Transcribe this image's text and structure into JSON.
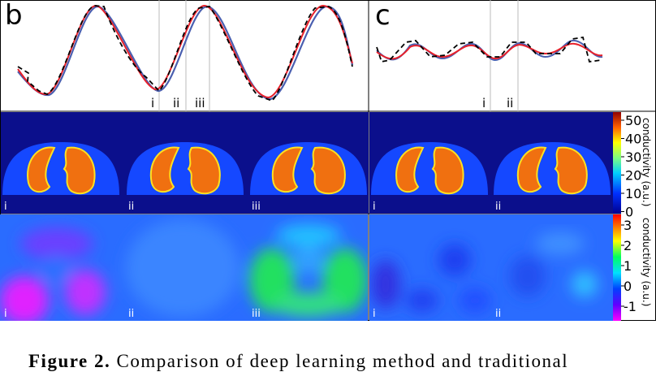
{
  "panels": {
    "b": {
      "letter": "b",
      "markers": [
        "i",
        "ii",
        "iii"
      ],
      "image_labels": [
        "i",
        "ii",
        "iii"
      ]
    },
    "c": {
      "letter": "c",
      "markers": [
        "i",
        "ii"
      ],
      "image_labels": [
        "i",
        "ii"
      ]
    }
  },
  "colorbar_top": {
    "label": "conductivity (a.u.)",
    "ticks": [
      "50",
      "40",
      "30",
      "20",
      "10",
      "0"
    ]
  },
  "colorbar_bottom": {
    "label": "conductivity (a.u.)",
    "ticks": [
      "3",
      "2",
      "1",
      "0",
      "-1"
    ]
  },
  "caption": {
    "prefix": "Figure 2.",
    "text": "Comparison of deep learning method and traditional"
  },
  "colors": {
    "red_curve": "#e8202a",
    "blue_curve": "#4a5fb0",
    "dashed_curve": "#000000",
    "background_navy": "#0b0f8c",
    "body_blue": "#1548ff",
    "lung_orange": "#f07010"
  }
}
